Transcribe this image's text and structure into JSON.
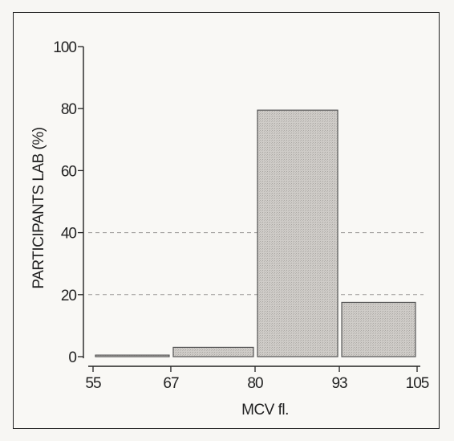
{
  "chart_data": {
    "type": "bar",
    "bin_edges": [
      55,
      67,
      80,
      93,
      105
    ],
    "values": [
      0.5,
      3,
      79.5,
      17.5
    ],
    "xlabel": "MCV fl.",
    "ylabel": "PARTICIPANTS LAB (%)",
    "ylim": [
      0,
      100
    ],
    "yticks": [
      0,
      20,
      40,
      60,
      80,
      100
    ],
    "xticks": [
      55,
      67,
      80,
      93,
      105
    ],
    "grid": "dashed horizontal at 20 and 40",
    "colors": {
      "bar_fill": "#c9c6c2",
      "bar_stroke": "#555555",
      "axis": "#222222"
    }
  }
}
